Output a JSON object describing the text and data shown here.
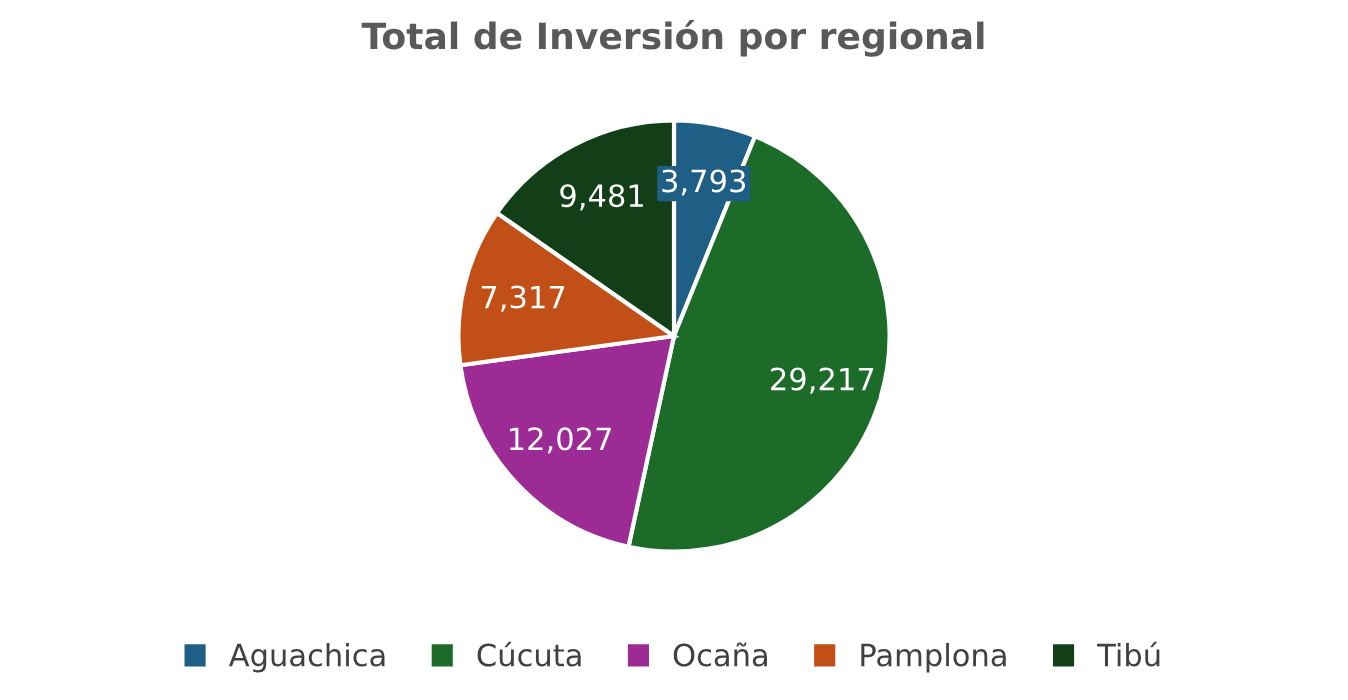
{
  "chart_data": {
    "type": "pie",
    "title": "Total de Inversión por regional",
    "categories": [
      "Aguachica",
      "Cúcuta",
      "Ocaña",
      "Pamplona",
      "Tibú"
    ],
    "values": [
      3793,
      29217,
      12027,
      7317,
      9481
    ],
    "value_labels": [
      "3,793",
      "29,217",
      "12,027",
      "7,317",
      "9,481"
    ],
    "colors": [
      "#1f5f86",
      "#1d6b29",
      "#9c2b96",
      "#c24f17",
      "#123f18"
    ],
    "legend": "bottom"
  }
}
